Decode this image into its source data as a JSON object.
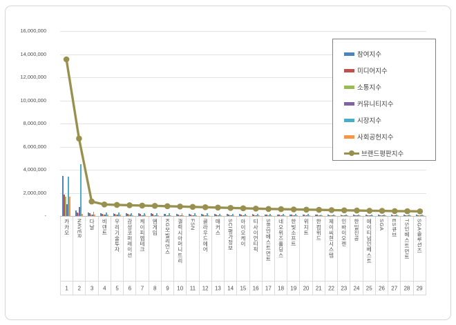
{
  "chart_data": {
    "type": "bar",
    "subtype": "grouped-bars-with-line-overlay",
    "title": "",
    "legend_position": "inside-top-right",
    "grid": true,
    "categories": [
      "카카오",
      "NAVER",
      "다날",
      "비덴트",
      "우리기술투자",
      "감성코퍼레이션",
      "케이피엠테크",
      "엠게임",
      "KG모빌리언스",
      "갤럭시아머니트리",
      "FSN",
      "클라우드에어",
      "매커스",
      "SCI평가정보",
      "아이오케이",
      "티사이언티픽",
      "SBI인베스트먼트",
      "네오위즈홀딩스",
      "한빛소프트",
      "위지트",
      "한컴위드",
      "제이씨현시스템",
      "인바이오젠",
      "한일진공",
      "에이티넘인베스트",
      "SGA",
      "ES큐브",
      "TS인베스트먼트",
      "SGA솔루션즈"
    ],
    "category_numbers": [
      "1",
      "2",
      "3",
      "4",
      "5",
      "6",
      "7",
      "8",
      "9",
      "10",
      "11",
      "12",
      "13",
      "14",
      "15",
      "16",
      "17",
      "18",
      "19",
      "20",
      "21",
      "22",
      "23",
      "24",
      "25",
      "26",
      "27",
      "28",
      "29"
    ],
    "y_axis": {
      "min": 0,
      "max": 16000000,
      "step": 2000000,
      "tick_labels": [
        "-",
        "2,000,000",
        "4,000,000",
        "6,000,000",
        "8,000,000",
        "10,000,000",
        "12,000,000",
        "14,000,000",
        "16,000,000"
      ]
    },
    "series": [
      {
        "name": "참여지수",
        "type": "bar",
        "color": "#4F81BD",
        "values": [
          3450000,
          480000,
          300000,
          240000,
          230000,
          225000,
          215000,
          210000,
          205000,
          195000,
          190000,
          180000,
          175000,
          170000,
          160000,
          155000,
          145000,
          140000,
          135000,
          130000,
          125000,
          120000,
          115000,
          110000,
          110000,
          105000,
          100000,
          100000,
          95000
        ]
      },
      {
        "name": "미디어지수",
        "type": "bar",
        "color": "#C0504D",
        "values": [
          1850000,
          300000,
          225000,
          180000,
          170000,
          165000,
          160000,
          160000,
          155000,
          150000,
          140000,
          135000,
          130000,
          125000,
          120000,
          115000,
          110000,
          105000,
          100000,
          100000,
          95000,
          90000,
          90000,
          85000,
          80000,
          80000,
          75000,
          75000,
          70000
        ]
      },
      {
        "name": "소통지수",
        "type": "bar",
        "color": "#9BBB59",
        "values": [
          1650000,
          240000,
          125000,
          100000,
          100000,
          95000,
          90000,
          90000,
          85000,
          80000,
          80000,
          75000,
          75000,
          70000,
          65000,
          65000,
          60000,
          60000,
          55000,
          55000,
          55000,
          50000,
          50000,
          45000,
          45000,
          45000,
          40000,
          40000,
          40000
        ]
      },
      {
        "name": "커뮤니티지수",
        "type": "bar",
        "color": "#8064A2",
        "values": [
          1000000,
          780000,
          125000,
          100000,
          95000,
          95000,
          90000,
          90000,
          85000,
          80000,
          80000,
          75000,
          75000,
          70000,
          65000,
          65000,
          60000,
          60000,
          55000,
          55000,
          55000,
          50000,
          50000,
          45000,
          45000,
          45000,
          45000,
          40000,
          40000
        ]
      },
      {
        "name": "시장지수",
        "type": "bar",
        "color": "#4BACC6",
        "values": [
          3400000,
          4480000,
          350000,
          280000,
          270000,
          260000,
          250000,
          245000,
          240000,
          230000,
          220000,
          215000,
          205000,
          195000,
          190000,
          180000,
          170000,
          165000,
          160000,
          155000,
          150000,
          145000,
          140000,
          135000,
          130000,
          125000,
          120000,
          115000,
          115000
        ]
      },
      {
        "name": "사회공헌지수",
        "type": "bar",
        "color": "#F79646",
        "values": [
          1700000,
          200000,
          125000,
          100000,
          95000,
          90000,
          95000,
          85000,
          80000,
          85000,
          80000,
          80000,
          70000,
          70000,
          70000,
          60000,
          65000,
          60000,
          65000,
          55000,
          50000,
          55000,
          45000,
          50000,
          45000,
          40000,
          45000,
          40000,
          40000
        ]
      },
      {
        "name": "브랜드평판지수",
        "type": "line",
        "color": "#98904E",
        "values": [
          13550000,
          6700000,
          1250000,
          1000000,
          960000,
          930000,
          900000,
          880000,
          850000,
          820000,
          790000,
          760000,
          730000,
          700000,
          670000,
          640000,
          610000,
          590000,
          570000,
          550000,
          530000,
          510000,
          490000,
          470000,
          455000,
          440000,
          425000,
          410000,
          400000
        ]
      }
    ]
  }
}
